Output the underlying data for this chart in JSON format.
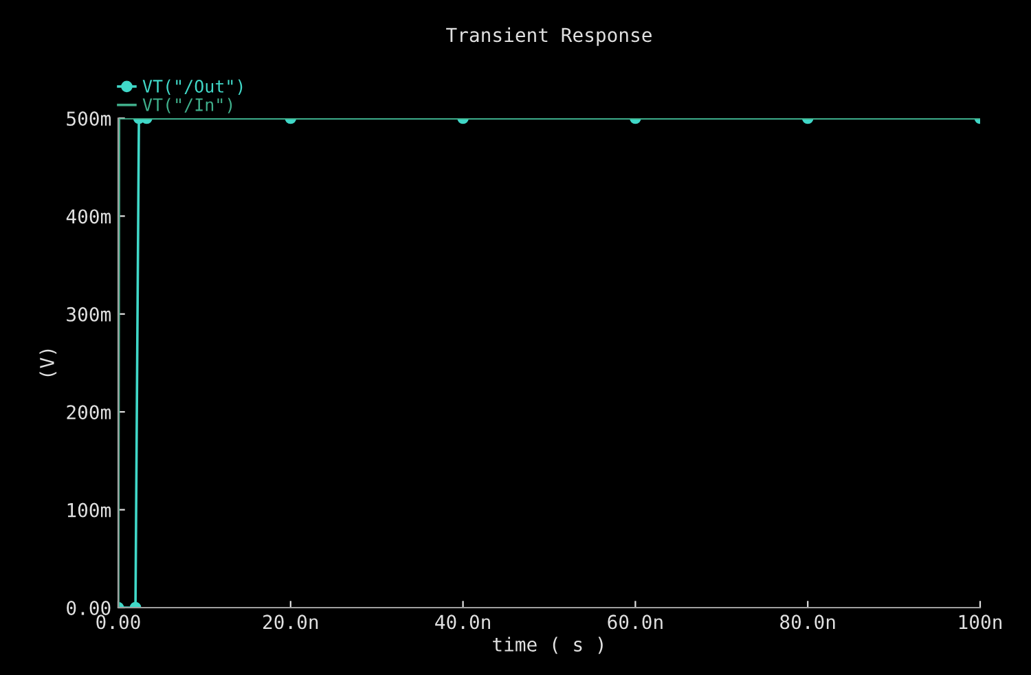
{
  "chart_data": {
    "type": "line",
    "title": "Transient Response",
    "xlabel": "time ( s )",
    "ylabel": "(V)",
    "series": [
      {
        "name": "VT(\"/Out\")",
        "color": "#40d8c8",
        "marker": "circle",
        "x": [
          0,
          2.0,
          2.4,
          3.3,
          20,
          40,
          60,
          80,
          100
        ],
        "values": [
          0,
          0,
          500,
          500,
          500,
          500,
          500,
          500,
          500
        ]
      },
      {
        "name": "VT(\"/In\")",
        "color": "#3fae8a",
        "marker": "none",
        "x": [
          0,
          0.1,
          100
        ],
        "values": [
          0,
          500,
          500
        ]
      }
    ],
    "xlim": [
      0,
      100
    ],
    "xticks": [
      {
        "value": 0,
        "label": "0.00"
      },
      {
        "value": 20,
        "label": "20.0n"
      },
      {
        "value": 40,
        "label": "40.0n"
      },
      {
        "value": 60,
        "label": "60.0n"
      },
      {
        "value": 80,
        "label": "80.0n"
      },
      {
        "value": 100,
        "label": "100n"
      }
    ],
    "ylim": [
      0,
      500
    ],
    "yticks": [
      {
        "value": 0,
        "label": "0.00"
      },
      {
        "value": 100,
        "label": "100m"
      },
      {
        "value": 200,
        "label": "200m"
      },
      {
        "value": 300,
        "label": "300m"
      },
      {
        "value": 400,
        "label": "400m"
      },
      {
        "value": 500,
        "label": "500m"
      }
    ],
    "grid": false,
    "legend": "top left",
    "line_style": "solid"
  }
}
